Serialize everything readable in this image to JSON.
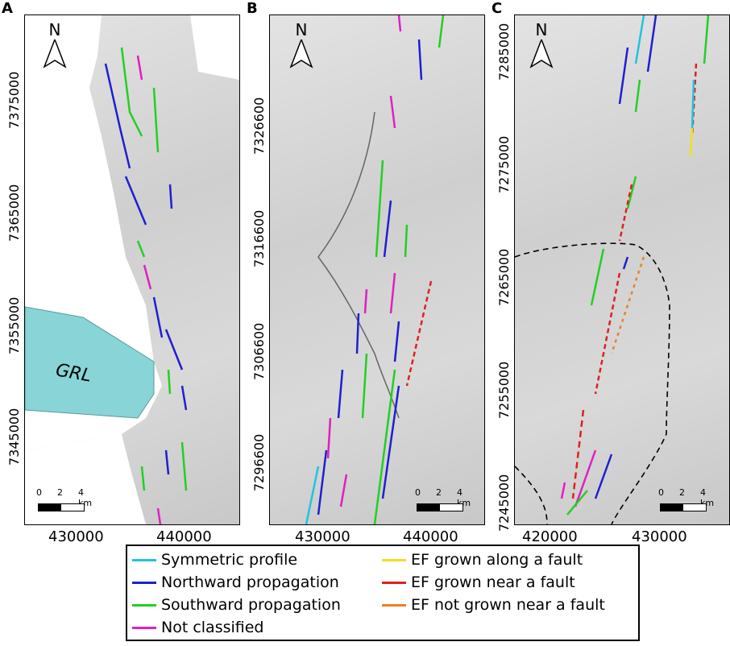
{
  "panels": [
    {
      "label": "A",
      "yticks": [
        "7375000",
        "7365000",
        "7355000",
        "7345000"
      ],
      "xticks": [
        "430000",
        "440000"
      ],
      "scale": {
        "labels": [
          "0",
          "2",
          "4 km"
        ]
      },
      "north": "N",
      "lake_label": "GRL"
    },
    {
      "label": "B",
      "yticks": [
        "7326600",
        "7316600",
        "7306600",
        "7296600"
      ],
      "xticks": [
        "430000",
        "440000"
      ],
      "scale": {
        "labels": [
          "0",
          "2",
          "4 km"
        ]
      },
      "north": "N"
    },
    {
      "label": "C",
      "yticks": [
        "7285000",
        "7275000",
        "7265000",
        "7255000",
        "7245000"
      ],
      "xticks": [
        "420000",
        "430000"
      ],
      "scale": {
        "labels": [
          "0",
          "2",
          "4 km"
        ]
      },
      "north": "N"
    }
  ],
  "legend": {
    "items": [
      {
        "label": "Symmetric profile",
        "color": "#22c3e0"
      },
      {
        "label": "Northward propagation",
        "color": "#1f1fd0"
      },
      {
        "label": "Southward propagation",
        "color": "#22d022"
      },
      {
        "label": "Not classified",
        "color": "#e020c0"
      },
      {
        "label": "EF grown along a fault",
        "color": "#f0e020"
      },
      {
        "label": "EF grown near a  fault",
        "color": "#e02020"
      },
      {
        "label": "EF not grown near a fault",
        "color": "#f08020"
      }
    ]
  }
}
